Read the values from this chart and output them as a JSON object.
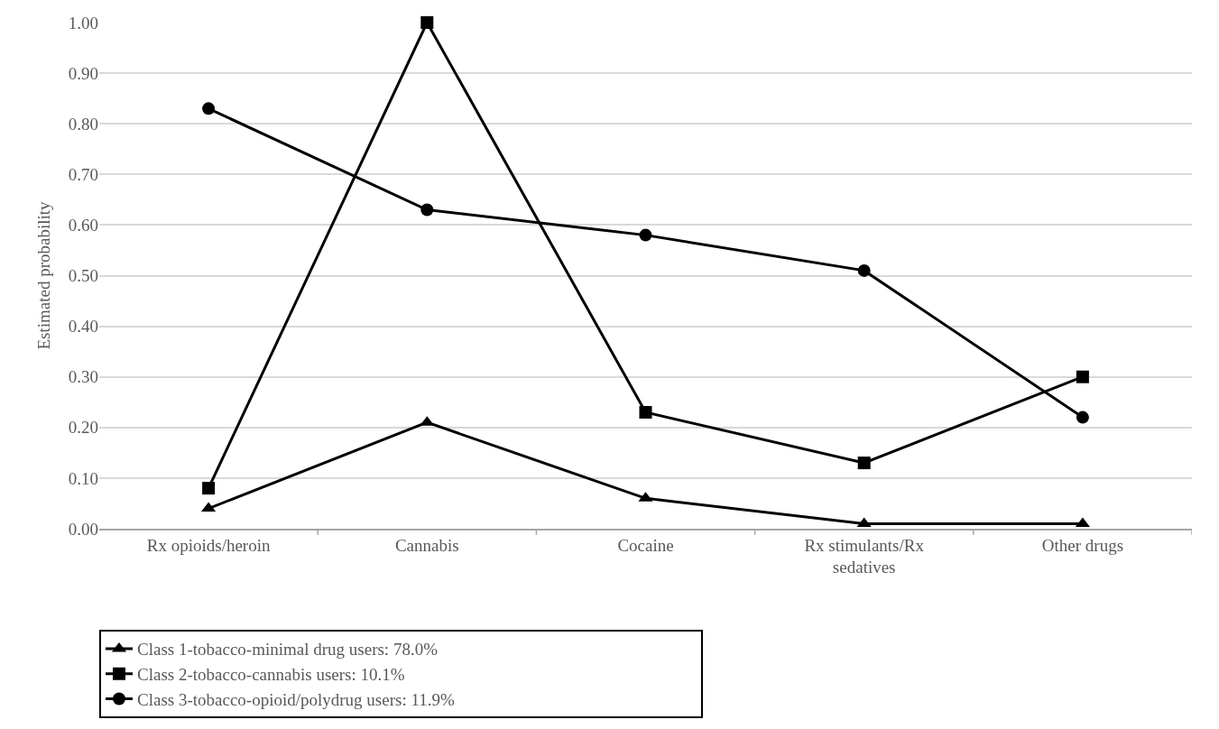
{
  "chart_data": {
    "type": "line",
    "ylabel": "Estimated probability",
    "categories": [
      "Rx opioids/heroin",
      "Cannabis",
      "Cocaine",
      "Rx stimulants/Rx sedatives",
      "Other drugs"
    ],
    "series": [
      {
        "name": "Class 1-tobacco-minimal drug users: 78.0%",
        "color": "#000000",
        "marker": "triangle",
        "values": [
          0.04,
          0.21,
          0.06,
          0.01,
          0.01
        ]
      },
      {
        "name": "Class 2-tobacco-cannabis users: 10.1%",
        "color": "#000000",
        "marker": "square",
        "values": [
          0.08,
          1.0,
          0.23,
          0.13,
          0.3
        ]
      },
      {
        "name": "Class 3-tobacco-opioid/polydrug users: 11.9%",
        "color": "#000000",
        "marker": "circle",
        "values": [
          0.83,
          0.63,
          0.58,
          0.51,
          0.22
        ]
      }
    ],
    "ylim": [
      0,
      1
    ],
    "yticks": [
      {
        "value": 0,
        "label": "0.00"
      },
      {
        "value": 0.1,
        "label": "0.10"
      },
      {
        "value": 0.2,
        "label": "0.20"
      },
      {
        "value": 0.3,
        "label": "0.30"
      },
      {
        "value": 0.4,
        "label": "0.40"
      },
      {
        "value": 0.5,
        "label": "0.50"
      },
      {
        "value": 0.6,
        "label": "0.60"
      },
      {
        "value": 0.7,
        "label": "0.70"
      },
      {
        "value": 0.8,
        "label": "0.80"
      },
      {
        "value": 0.9,
        "label": "0.90"
      },
      {
        "value": 1,
        "label": "1.00"
      }
    ],
    "grid": "y",
    "legend": "bottom",
    "line_style": "solid"
  }
}
